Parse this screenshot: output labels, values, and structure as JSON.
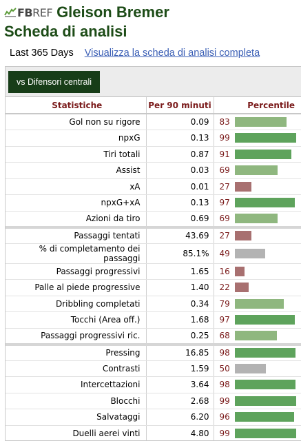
{
  "header": {
    "logo_fb": "FB",
    "logo_ref": "REF",
    "player_name": "Gleison Bremer",
    "subtitle": "Scheda di analisi"
  },
  "period": {
    "label": "Last 365 Days",
    "full_link": "Visualizza la scheda di analisi completa"
  },
  "position_button": "vs Difensori centrali",
  "table": {
    "headers": {
      "stat": "Statistiche",
      "per90": "Per 90 minuti",
      "percentile": "Percentile"
    },
    "colors": {
      "high": "#5ea35c",
      "mid": "#8fb77f",
      "neutral": "#b3b3b3",
      "low": "#a87070"
    },
    "groups": [
      [
        {
          "name": "Gol non su rigore",
          "value": "0.09",
          "percentile": "83",
          "tier": "mid"
        },
        {
          "name": "npxG",
          "value": "0.13",
          "percentile": "99",
          "tier": "high"
        },
        {
          "name": "Tiri totali",
          "value": "0.87",
          "percentile": "91",
          "tier": "high"
        },
        {
          "name": "Assist",
          "value": "0.03",
          "percentile": "69",
          "tier": "mid"
        },
        {
          "name": "xA",
          "value": "0.01",
          "percentile": "27",
          "tier": "low"
        },
        {
          "name": "npxG+xA",
          "value": "0.13",
          "percentile": "97",
          "tier": "high"
        },
        {
          "name": "Azioni da tiro",
          "value": "0.69",
          "percentile": "69",
          "tier": "mid"
        }
      ],
      [
        {
          "name": "Passaggi tentati",
          "value": "43.69",
          "percentile": "27",
          "tier": "low"
        },
        {
          "name": "% di completamento dei passaggi",
          "value": "85.1%",
          "percentile": "49",
          "tier": "neutral"
        },
        {
          "name": "Passaggi progressivi",
          "value": "1.65",
          "percentile": "16",
          "tier": "low"
        },
        {
          "name": "Palle al piede progressive",
          "value": "1.40",
          "percentile": "22",
          "tier": "low"
        },
        {
          "name": "Dribbling completati",
          "value": "0.34",
          "percentile": "79",
          "tier": "mid"
        },
        {
          "name": "Tocchi (Area off.)",
          "value": "1.68",
          "percentile": "97",
          "tier": "high"
        },
        {
          "name": "Passaggi progressivi ric.",
          "value": "0.25",
          "percentile": "68",
          "tier": "mid"
        }
      ],
      [
        {
          "name": "Pressing",
          "value": "16.85",
          "percentile": "98",
          "tier": "high"
        },
        {
          "name": "Contrasti",
          "value": "1.59",
          "percentile": "50",
          "tier": "neutral"
        },
        {
          "name": "Intercettazioni",
          "value": "3.64",
          "percentile": "98",
          "tier": "high"
        },
        {
          "name": "Blocchi",
          "value": "2.68",
          "percentile": "99",
          "tier": "high"
        },
        {
          "name": "Salvataggi",
          "value": "6.20",
          "percentile": "96",
          "tier": "high"
        },
        {
          "name": "Duelli aerei vinti",
          "value": "4.80",
          "percentile": "99",
          "tier": "high"
        }
      ]
    ]
  }
}
